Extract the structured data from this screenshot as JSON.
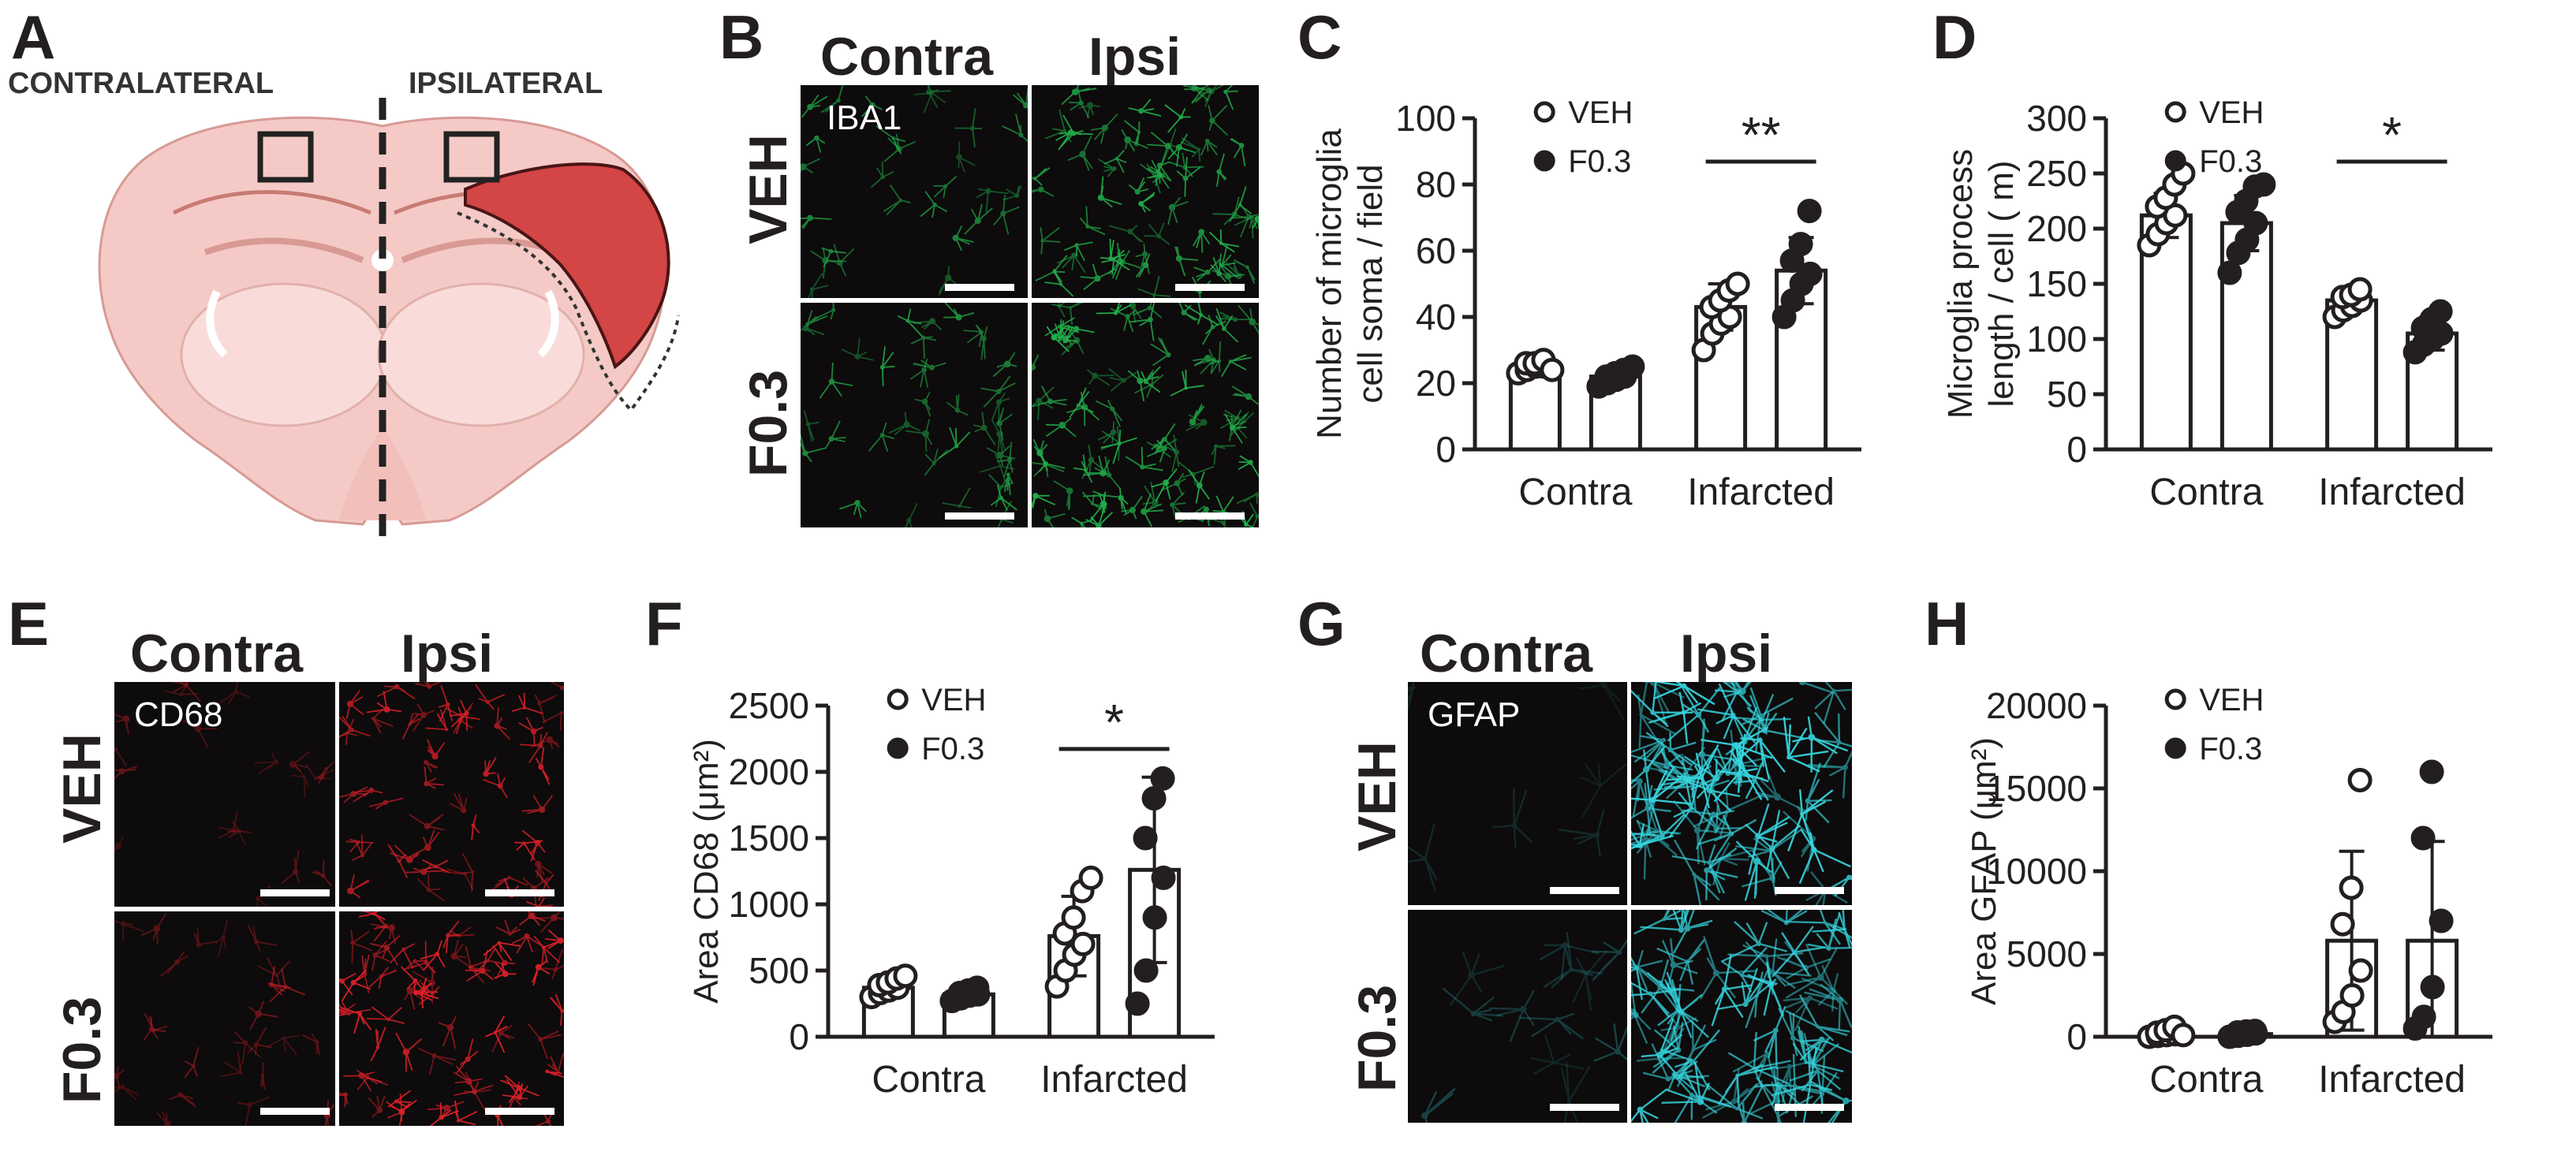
{
  "panels": {
    "A": {
      "label": "A",
      "contralateral": "CONTRALATERAL",
      "ipsilateral": "IPSILATERAL"
    },
    "B": {
      "label": "B",
      "col1": "Contra",
      "col2": "Ipsi",
      "row1": "VEH",
      "row2": "F0.3",
      "stain": "IBA1"
    },
    "E": {
      "label": "E",
      "col1": "Contra",
      "col2": "Ipsi",
      "row1": "VEH",
      "row2": "F0.3",
      "stain": "CD68"
    },
    "G": {
      "label": "G",
      "col1": "Contra",
      "col2": "Ipsi",
      "row1": "VEH",
      "row2": "F0.3",
      "stain": "GFAP"
    }
  },
  "colors": {
    "iba1": "#22b14c",
    "cd68": "#e0202a",
    "gfap": "#36d6e0",
    "infarct": "#d44545",
    "brain": "#f4c8c4"
  },
  "chart_data": [
    {
      "panel": "C",
      "type": "bar",
      "ylabel_lines": [
        "Number of microglia",
        "cell soma / field"
      ],
      "ylim": [
        0,
        100
      ],
      "yticks": [
        0,
        20,
        40,
        60,
        80,
        100
      ],
      "categories": [
        "Contra",
        "Infarcted"
      ],
      "series": [
        {
          "name": "VEH",
          "marker": "open",
          "means": [
            25,
            43
          ],
          "sd": [
            2,
            7
          ],
          "points": [
            [
              23,
              24,
              25,
              25,
              26,
              26,
              27,
              24
            ],
            [
              30,
              35,
              38,
              40,
              43,
              45,
              48,
              50
            ]
          ]
        },
        {
          "name": "F0.3",
          "marker": "filled",
          "means": [
            22,
            54
          ],
          "sd": [
            3,
            10
          ],
          "points": [
            [
              19,
              20,
              21,
              22,
              22,
              23,
              24,
              25
            ],
            [
              40,
              45,
              50,
              53,
              57,
              62,
              72
            ]
          ]
        }
      ],
      "significance": [
        {
          "category": 1,
          "text": "**"
        }
      ]
    },
    {
      "panel": "D",
      "type": "bar",
      "ylabel_lines": [
        "Microglia process",
        "length / cell ( m)"
      ],
      "ylim": [
        0,
        300
      ],
      "yticks": [
        0,
        50,
        100,
        150,
        200,
        250,
        300
      ],
      "categories": [
        "Contra",
        "Infarcted"
      ],
      "series": [
        {
          "name": "VEH",
          "marker": "open",
          "means": [
            212,
            135
          ],
          "sd": [
            20,
            8
          ],
          "points": [
            [
              185,
              195,
              205,
              212,
              220,
              228,
              240,
              250
            ],
            [
              120,
              126,
              130,
              135,
              138,
              140,
              145
            ]
          ]
        },
        {
          "name": "F0.3",
          "marker": "filled",
          "means": [
            205,
            105
          ],
          "sd": [
            25,
            15
          ],
          "points": [
            [
              160,
              178,
              190,
              205,
              215,
              225,
              238,
              240
            ],
            [
              88,
              95,
              100,
              105,
              110,
              118,
              125
            ]
          ]
        }
      ],
      "significance": [
        {
          "category": 1,
          "text": "*"
        }
      ]
    },
    {
      "panel": "F",
      "type": "bar",
      "ylabel_lines": [
        "Area CD68 (μm²)"
      ],
      "ylim": [
        0,
        2500
      ],
      "yticks": [
        0,
        500,
        1000,
        1500,
        2000,
        2500
      ],
      "categories": [
        "Contra",
        "Infarcted"
      ],
      "series": [
        {
          "name": "VEH",
          "marker": "open",
          "means": [
            370,
            760
          ],
          "sd": [
            60,
            300
          ],
          "points": [
            [
              300,
              330,
              350,
              370,
              390,
              410,
              440,
              460
            ],
            [
              380,
              500,
              620,
              700,
              780,
              900,
              1100,
              1200
            ]
          ]
        },
        {
          "name": "F0.3",
          "marker": "filled",
          "means": [
            320,
            1260
          ],
          "sd": [
            40,
            700
          ],
          "points": [
            [
              270,
              290,
              310,
              320,
              330,
              350,
              370
            ],
            [
              250,
              500,
              900,
              1200,
              1500,
              1800,
              1950
            ]
          ]
        }
      ],
      "significance": [
        {
          "category": 1,
          "text": "*"
        }
      ]
    },
    {
      "panel": "H",
      "type": "bar",
      "ylabel_lines": [
        "Area GFAP (μm²)"
      ],
      "ylim": [
        0,
        20000
      ],
      "yticks": [
        0,
        5000,
        10000,
        15000,
        20000
      ],
      "categories": [
        "Contra",
        "Infarcted"
      ],
      "series": [
        {
          "name": "VEH",
          "marker": "open",
          "means": [
            120,
            5800
          ],
          "sd": [
            200,
            5400
          ],
          "points": [
            [
              0,
              50,
              100,
              150,
              250,
              400,
              600,
              100
            ],
            [
              900,
              1500,
              2500,
              4000,
              6800,
              9000,
              15500
            ]
          ]
        },
        {
          "name": "F0.3",
          "marker": "filled",
          "means": [
            160,
            5800
          ],
          "sd": [
            150,
            6000
          ],
          "points": [
            [
              0,
              60,
              120,
              200,
              260,
              320,
              350
            ],
            [
              500,
              1200,
              3000,
              7000,
              12000,
              16000
            ]
          ]
        }
      ],
      "significance": []
    }
  ]
}
